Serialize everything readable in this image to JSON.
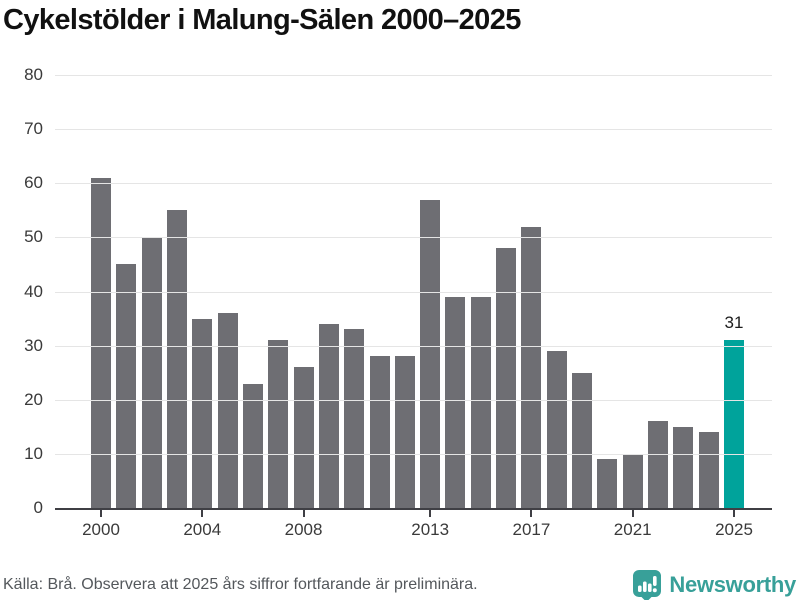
{
  "title": "Cykelstölder i Malung-Sälen 2000–2025",
  "chart_data": {
    "type": "bar",
    "title": "Cykelstölder i Malung-Sälen 2000–2025",
    "categories": [
      2000,
      2001,
      2002,
      2003,
      2004,
      2005,
      2006,
      2007,
      2008,
      2009,
      2010,
      2011,
      2012,
      2013,
      2014,
      2015,
      2016,
      2017,
      2018,
      2019,
      2020,
      2021,
      2022,
      2023,
      2024,
      2025
    ],
    "values": [
      61,
      45,
      50,
      55,
      35,
      36,
      23,
      31,
      26,
      34,
      33,
      28,
      28,
      57,
      39,
      39,
      48,
      52,
      29,
      25,
      9,
      10,
      16,
      15,
      14,
      31
    ],
    "highlight_index": 25,
    "highlight_value_label": "31",
    "xlabel": "",
    "ylabel": "",
    "ylim": [
      0,
      80
    ],
    "y_ticks": [
      0,
      10,
      20,
      30,
      40,
      50,
      60,
      70,
      80
    ],
    "x_tick_years": [
      2000,
      2004,
      2008,
      2013,
      2017,
      2021,
      2025
    ],
    "grid": "horizontal",
    "legend": "none",
    "bar_color": "#6e6e73",
    "highlight_color": "#00a39b"
  },
  "footer": {
    "source": "Källa: Brå. Observera att 2025 års siffror fortfarande är preliminära.",
    "brand": "Newsworthy"
  },
  "colors": {
    "axis": "#3f3f44",
    "gridline": "#e5e5e5",
    "tick_label": "#3a3a3a",
    "brand_teal": "#38a099"
  }
}
